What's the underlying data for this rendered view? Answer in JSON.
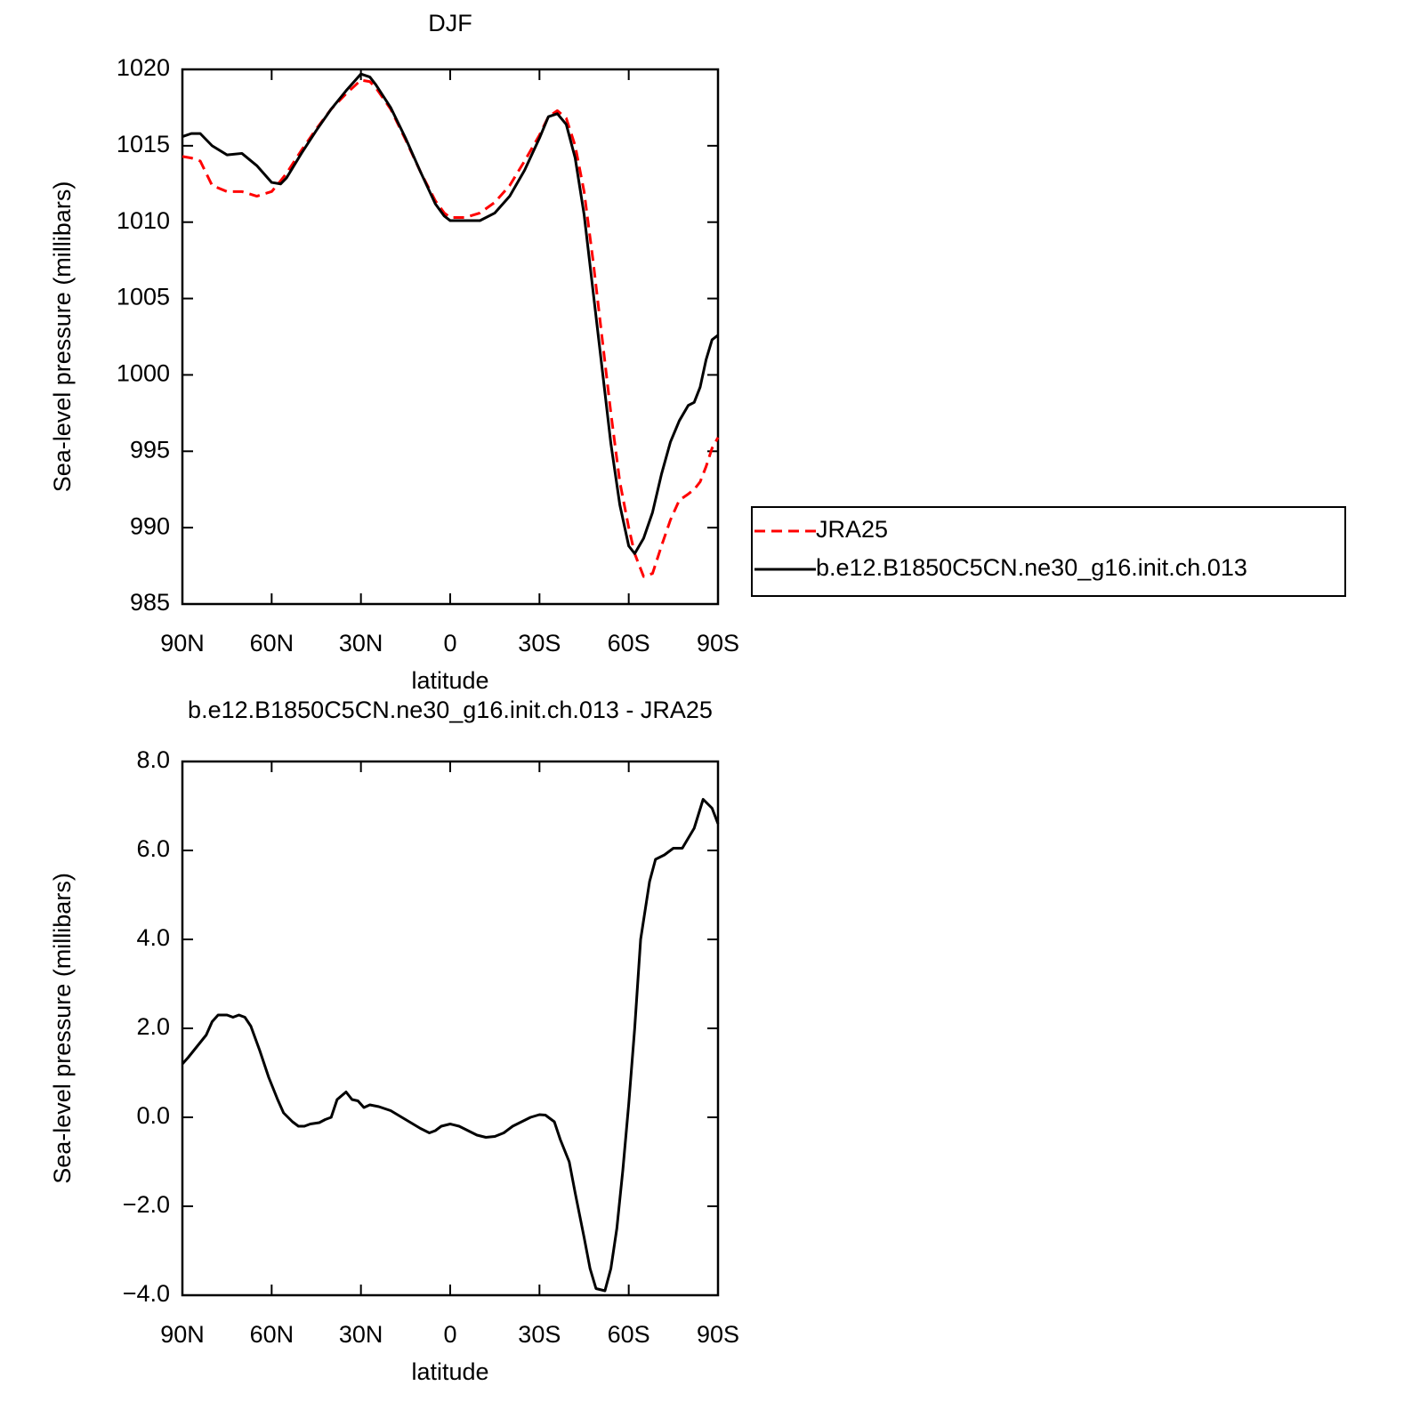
{
  "chart_data": [
    {
      "type": "line",
      "title": "DJF",
      "x_label": "latitude",
      "y_label": "Sea-level pressure (millibars)",
      "x": [
        90,
        87,
        84,
        80,
        75,
        70,
        65,
        60,
        57,
        55,
        50,
        45,
        40,
        35,
        30,
        27,
        25,
        20,
        15,
        10,
        5,
        2,
        0,
        -5,
        -10,
        -15,
        -20,
        -25,
        -30,
        -33,
        -36,
        -39,
        -42,
        -45,
        -48,
        -51,
        -54,
        -57,
        -60,
        -62,
        -65,
        -68,
        -71,
        -74,
        -77,
        -80,
        -82,
        -84,
        -86,
        -88,
        -90
      ],
      "series": [
        {
          "name": "JRA25",
          "color": "#ff0000",
          "linestyle": "dashed",
          "values": [
            1014.3,
            1014.2,
            1014.0,
            1012.4,
            1012.0,
            1012.0,
            1011.7,
            1012.0,
            1012.7,
            1013.2,
            1014.7,
            1016.1,
            1017.4,
            1018.4,
            1019.3,
            1019.2,
            1018.8,
            1017.4,
            1015.4,
            1013.3,
            1011.4,
            1010.6,
            1010.3,
            1010.3,
            1010.6,
            1011.3,
            1012.4,
            1014.0,
            1015.7,
            1016.9,
            1017.3,
            1016.8,
            1015.0,
            1012.0,
            1007.5,
            1002.5,
            997.5,
            993.0,
            990.0,
            988.3,
            986.8,
            987.0,
            988.8,
            990.5,
            991.8,
            992.2,
            992.5,
            993.0,
            994.0,
            995.2,
            995.9
          ]
        },
        {
          "name": "b.e12.B1850C5CN.ne30_g16.init.ch.013",
          "color": "#000000",
          "linestyle": "solid",
          "values": [
            1015.6,
            1015.8,
            1015.8,
            1015.0,
            1014.4,
            1014.5,
            1013.7,
            1012.6,
            1012.5,
            1012.9,
            1014.5,
            1016.0,
            1017.4,
            1018.6,
            1019.7,
            1019.5,
            1019.0,
            1017.5,
            1015.5,
            1013.3,
            1011.2,
            1010.4,
            1010.1,
            1010.1,
            1010.1,
            1010.6,
            1011.7,
            1013.4,
            1015.5,
            1016.9,
            1017.1,
            1016.4,
            1014.2,
            1010.5,
            1005.5,
            1000.5,
            995.5,
            991.5,
            988.8,
            988.3,
            989.3,
            991.0,
            993.5,
            995.6,
            997.0,
            998.0,
            998.2,
            999.2,
            1001.0,
            1002.3,
            1002.6
          ]
        }
      ],
      "xlim": [
        90,
        -90
      ],
      "xticks": [
        {
          "value": 90,
          "label": "90N"
        },
        {
          "value": 60,
          "label": "60N"
        },
        {
          "value": 30,
          "label": "30N"
        },
        0,
        {
          "value": -30,
          "label": "30S"
        },
        {
          "value": -60,
          "label": "60S"
        },
        {
          "value": -90,
          "label": "90S"
        }
      ],
      "ylim": [
        985,
        1020
      ],
      "yticks": [
        985,
        990,
        995,
        1000,
        1005,
        1010,
        1015,
        1020
      ],
      "legend": "right"
    },
    {
      "type": "line",
      "title": "b.e12.B1850C5CN.ne30_g16.init.ch.013 - JRA25",
      "x_label": "latitude",
      "y_label": "Sea-level pressure (millibars)",
      "x": [
        90,
        88,
        85,
        82,
        80,
        78,
        75,
        73,
        71,
        69,
        67,
        64,
        61,
        58,
        56,
        53,
        51,
        49,
        47,
        44,
        42,
        40,
        38,
        35,
        33,
        31,
        29,
        27,
        24,
        20,
        15,
        10,
        7,
        5,
        3,
        0,
        -3,
        -6,
        -9,
        -12,
        -15,
        -18,
        -21,
        -24,
        -27,
        -30,
        -32,
        -35,
        -37,
        -40,
        -42,
        -45,
        -47,
        -49,
        -52,
        -54,
        -56,
        -58,
        -60,
        -62,
        -64,
        -67,
        -69,
        -72,
        -75,
        -78,
        -82,
        -85,
        -88,
        -90
      ],
      "series": [
        {
          "color": "#000000",
          "linestyle": "solid",
          "values": [
            1.2,
            1.35,
            1.6,
            1.85,
            2.15,
            2.3,
            2.3,
            2.25,
            2.3,
            2.25,
            2.05,
            1.5,
            0.9,
            0.4,
            0.1,
            -0.1,
            -0.2,
            -0.2,
            -0.15,
            -0.12,
            -0.05,
            0.0,
            0.4,
            0.57,
            0.4,
            0.37,
            0.22,
            0.28,
            0.24,
            0.15,
            -0.05,
            -0.25,
            -0.35,
            -0.3,
            -0.2,
            -0.15,
            -0.2,
            -0.3,
            -0.4,
            -0.45,
            -0.43,
            -0.35,
            -0.2,
            -0.1,
            0.0,
            0.06,
            0.05,
            -0.1,
            -0.5,
            -1.0,
            -1.7,
            -2.7,
            -3.4,
            -3.85,
            -3.9,
            -3.4,
            -2.5,
            -1.2,
            0.3,
            2.0,
            4.0,
            5.3,
            5.8,
            5.9,
            6.05,
            6.05,
            6.5,
            7.15,
            6.95,
            6.6
          ]
        }
      ],
      "xlim": [
        90,
        -90
      ],
      "xticks": [
        {
          "value": 90,
          "label": "90N"
        },
        {
          "value": 60,
          "label": "60N"
        },
        {
          "value": 30,
          "label": "30N"
        },
        0,
        {
          "value": -30,
          "label": "30S"
        },
        {
          "value": -60,
          "label": "60S"
        },
        {
          "value": -90,
          "label": "90S"
        }
      ],
      "ylim": [
        -4,
        8
      ],
      "yticks": [
        {
          "value": -4,
          "label": "−4.0"
        },
        {
          "value": -2,
          "label": "−2.0"
        },
        {
          "value": 0,
          "label": "0.0"
        },
        {
          "value": 2,
          "label": "2.0"
        },
        {
          "value": 4,
          "label": "4.0"
        },
        {
          "value": 6,
          "label": "6.0"
        },
        {
          "value": 8,
          "label": "8.0"
        }
      ]
    }
  ]
}
